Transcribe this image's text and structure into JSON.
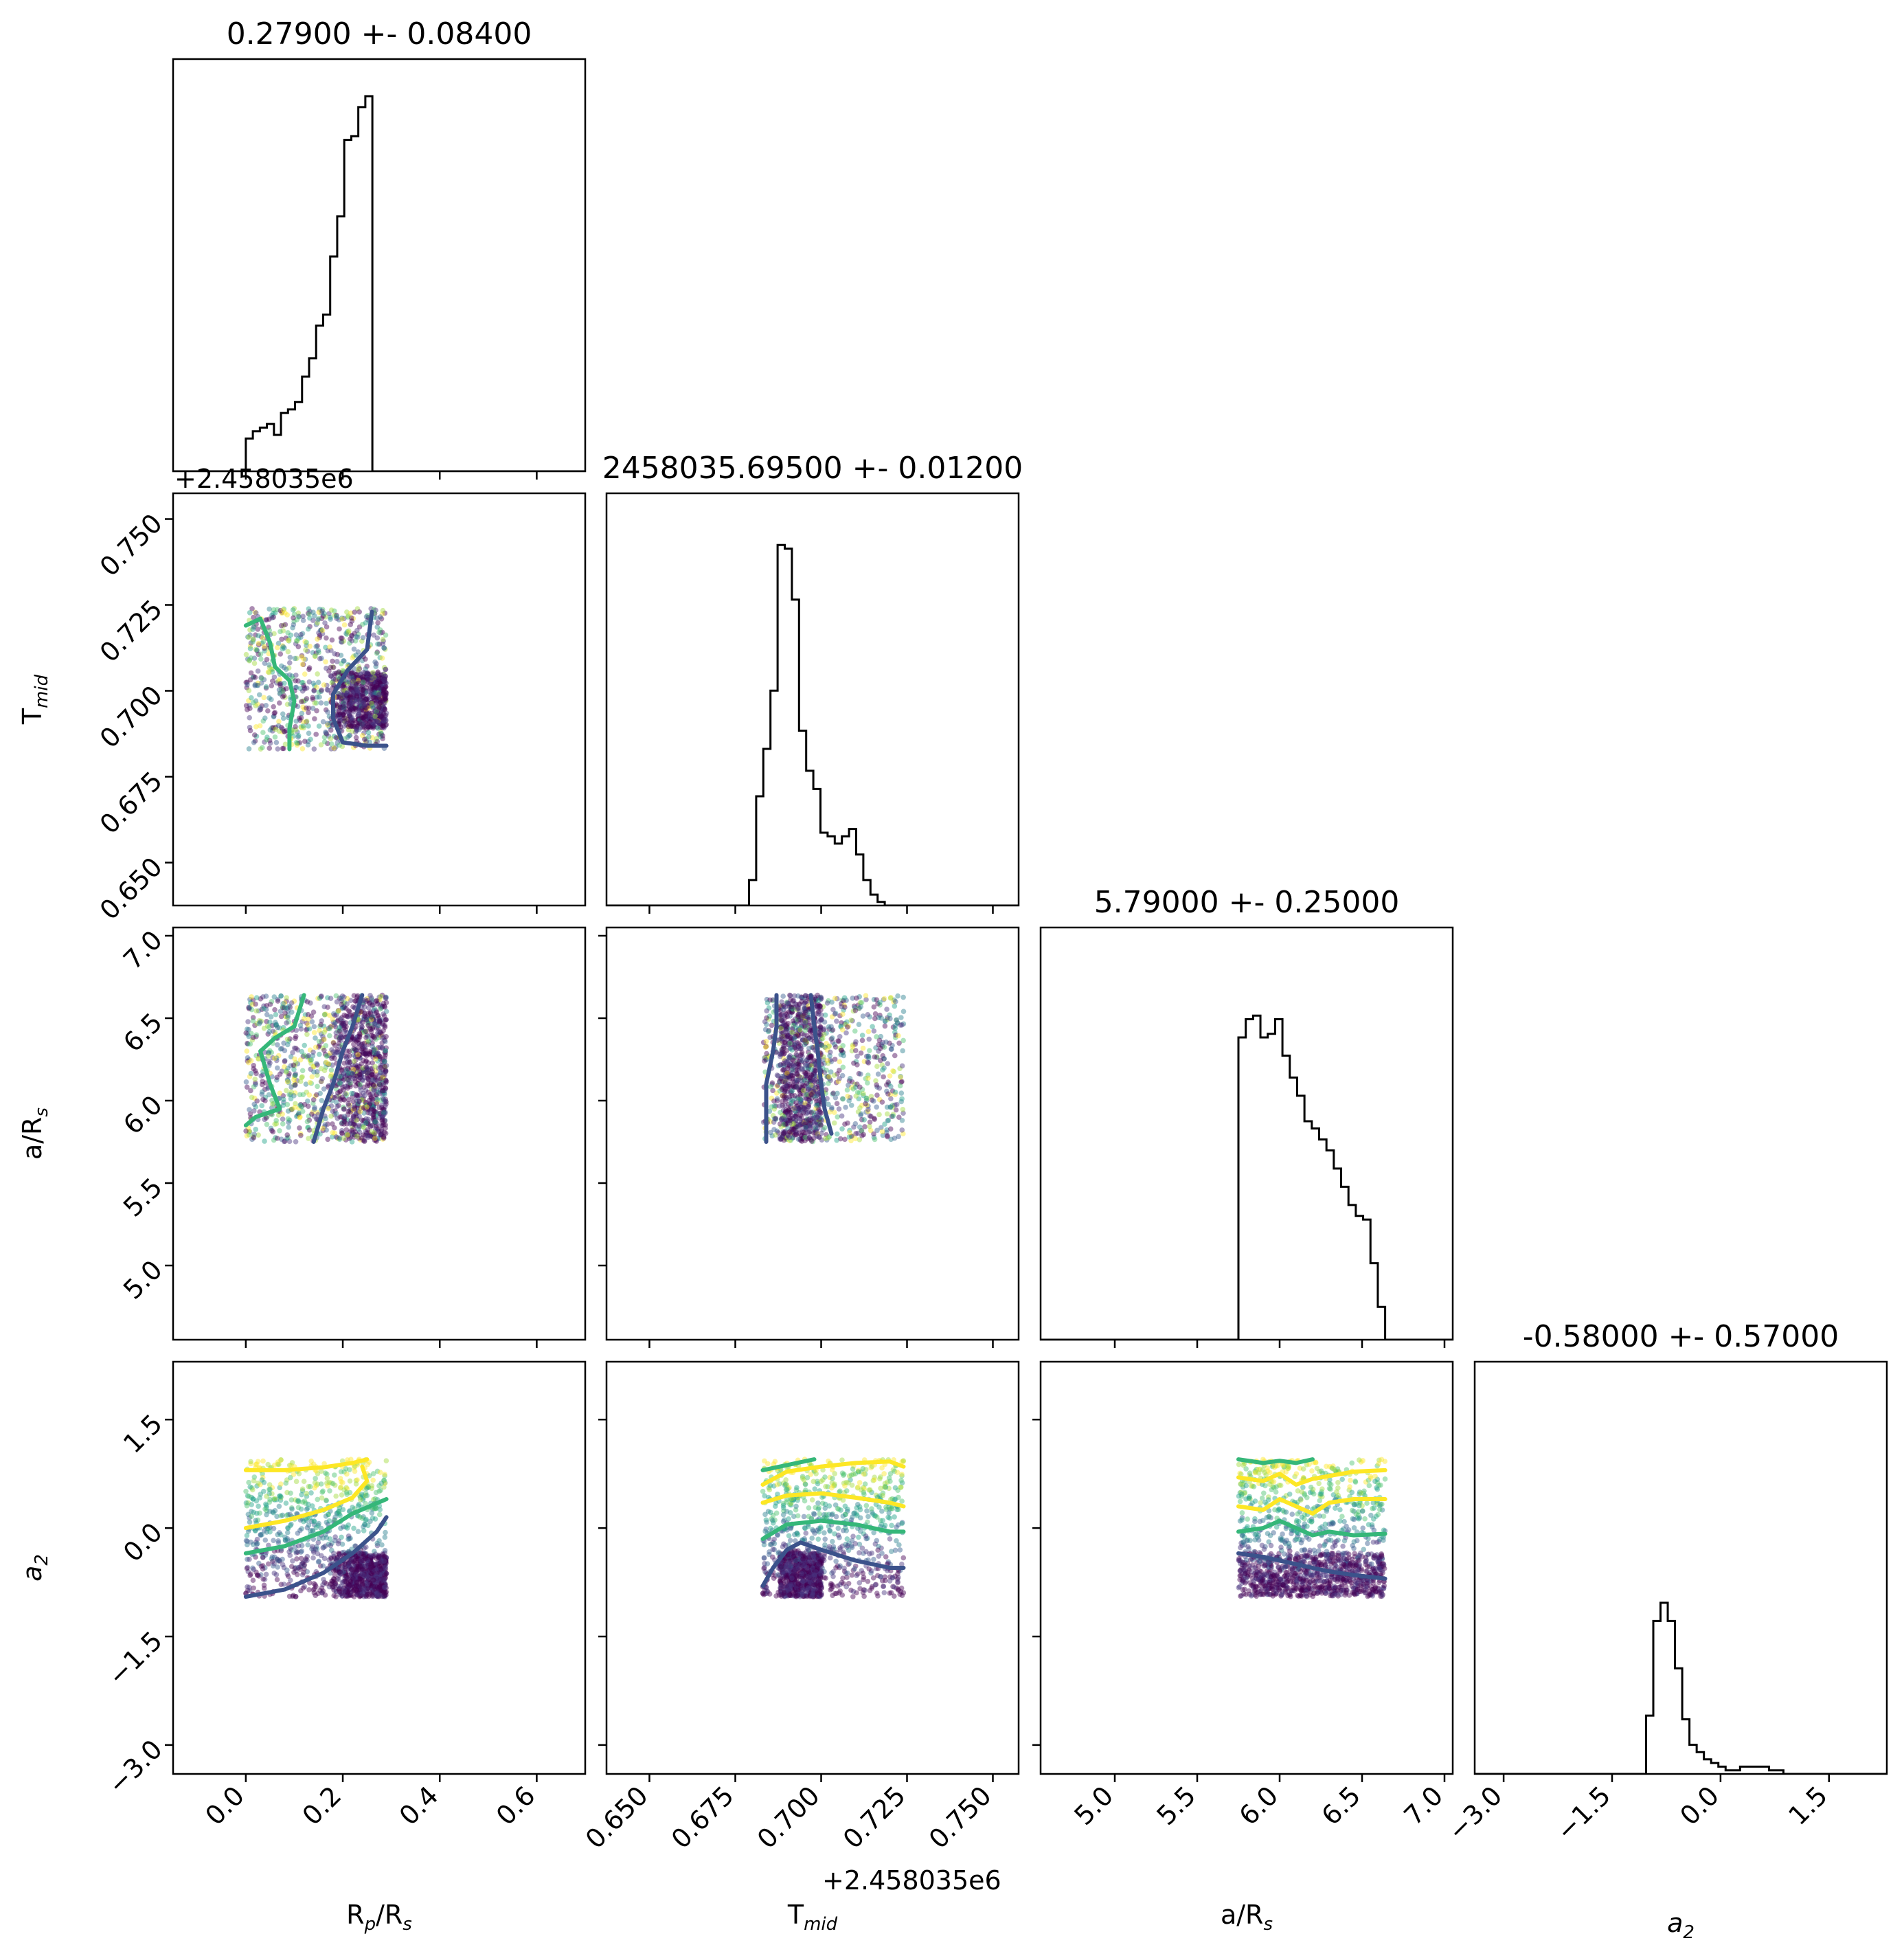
{
  "chart_data": {
    "type": "corner",
    "parameters": [
      {
        "key": "rp",
        "label": "R",
        "sub": "p",
        "label_rest": "/R",
        "sub2": "s",
        "range": [
          -0.15,
          0.7
        ],
        "ticks": [
          0.0,
          0.2,
          0.4,
          0.6
        ],
        "tick_labels": [
          "0.0",
          "0.2",
          "0.4",
          "0.6"
        ],
        "title": "0.27900 +- 0.08400",
        "offset_label": ""
      },
      {
        "key": "tmid",
        "label": "T",
        "sub": "mid",
        "label_rest": "",
        "sub2": "",
        "range": [
          0.6375,
          0.7575
        ],
        "ticks": [
          0.65,
          0.675,
          0.7,
          0.725,
          0.75
        ],
        "tick_labels": [
          "0.650",
          "0.675",
          "0.700",
          "0.725",
          "0.750"
        ],
        "title": "2458035.69500 +- 0.01200",
        "offset_label": "+2.458035e6"
      },
      {
        "key": "ars",
        "label": "a/R",
        "sub": "s",
        "label_rest": "",
        "sub2": "",
        "range": [
          4.55,
          7.05
        ],
        "ticks": [
          5.0,
          5.5,
          6.0,
          6.5,
          7.0
        ],
        "tick_labels": [
          "5.0",
          "5.5",
          "6.0",
          "6.5",
          "7.0"
        ],
        "title": "5.79000 +- 0.25000",
        "offset_label": ""
      },
      {
        "key": "a2",
        "label": "a",
        "sub": "2",
        "label_rest": "",
        "sub2": "",
        "italic": true,
        "range": [
          -3.4,
          2.3
        ],
        "ticks": [
          -3.0,
          -1.5,
          0.0,
          1.5
        ],
        "tick_labels": [
          "−3.0",
          "−1.5",
          "0.0",
          "1.5"
        ],
        "title": "-0.58000 +- 0.57000",
        "offset_label": ""
      }
    ],
    "sample_bounds": {
      "rp": [
        0.0,
        0.29
      ],
      "tmid": [
        0.683,
        0.724
      ],
      "ars": [
        5.75,
        6.64
      ],
      "a2": [
        -0.95,
        0.95
      ]
    },
    "histograms": [
      {
        "param": "rp",
        "start": 0.0,
        "width": 0.0145,
        "heights": [
          0.09,
          0.11,
          0.12,
          0.13,
          0.1,
          0.16,
          0.17,
          0.19,
          0.26,
          0.31,
          0.4,
          0.43,
          0.59,
          0.7,
          0.91,
          0.92,
          1.0,
          1.03,
          0.0,
          0.0
        ]
      },
      {
        "param": "tmid",
        "start": 0.679,
        "width": 0.00208,
        "heights": [
          0.07,
          0.3,
          0.43,
          0.59,
          0.99,
          0.98,
          0.84,
          0.48,
          0.37,
          0.32,
          0.2,
          0.19,
          0.17,
          0.19,
          0.21,
          0.14,
          0.07,
          0.03,
          0.01,
          0.0,
          0.0,
          0.0
        ]
      },
      {
        "param": "ars",
        "start": 5.75,
        "width": 0.0445,
        "heights": [
          0.83,
          0.88,
          0.89,
          0.83,
          0.84,
          0.88,
          0.78,
          0.72,
          0.67,
          0.6,
          0.58,
          0.55,
          0.52,
          0.47,
          0.42,
          0.37,
          0.34,
          0.33,
          0.21,
          0.09
        ]
      },
      {
        "param": "a2",
        "start": -1.03,
        "width": 0.1,
        "heights": [
          0.16,
          0.42,
          0.47,
          0.42,
          0.29,
          0.15,
          0.08,
          0.06,
          0.04,
          0.03,
          0.02,
          0.01,
          0.01,
          0.02,
          0.02,
          0.02,
          0.02,
          0.01,
          0.01,
          0.0
        ]
      }
    ],
    "contours": [
      {
        "x": "rp",
        "y": "tmid",
        "level": "yellow-green",
        "color": "#35b779",
        "points": [
          [
            0.0,
            0.719
          ],
          [
            0.03,
            0.721
          ],
          [
            0.05,
            0.714
          ],
          [
            0.06,
            0.707
          ],
          [
            0.09,
            0.703
          ],
          [
            0.1,
            0.697
          ],
          [
            0.09,
            0.689
          ],
          [
            0.09,
            0.683
          ]
        ]
      },
      {
        "x": "rp",
        "y": "tmid",
        "level": "dark",
        "color": "#3b528b",
        "points": [
          [
            0.26,
            0.723
          ],
          [
            0.25,
            0.712
          ],
          [
            0.21,
            0.706
          ],
          [
            0.18,
            0.699
          ],
          [
            0.18,
            0.692
          ],
          [
            0.2,
            0.685
          ],
          [
            0.25,
            0.684
          ],
          [
            0.29,
            0.684
          ]
        ]
      },
      {
        "x": "rp",
        "y": "ars",
        "level": "green",
        "color": "#35b779",
        "points": [
          [
            0.12,
            6.64
          ],
          [
            0.1,
            6.45
          ],
          [
            0.06,
            6.38
          ],
          [
            0.03,
            6.3
          ],
          [
            0.05,
            6.1
          ],
          [
            0.07,
            5.95
          ],
          [
            0.02,
            5.9
          ],
          [
            0.0,
            5.85
          ]
        ]
      },
      {
        "x": "rp",
        "y": "ars",
        "level": "dark",
        "color": "#3b528b",
        "points": [
          [
            0.24,
            6.64
          ],
          [
            0.22,
            6.45
          ],
          [
            0.2,
            6.3
          ],
          [
            0.18,
            6.1
          ],
          [
            0.16,
            5.95
          ],
          [
            0.14,
            5.75
          ]
        ]
      },
      {
        "x": "tmid",
        "y": "ars",
        "level": "dark",
        "color": "#3b528b",
        "points": [
          [
            0.687,
            6.64
          ],
          [
            0.687,
            6.45
          ],
          [
            0.686,
            6.3
          ],
          [
            0.684,
            6.1
          ],
          [
            0.684,
            5.75
          ]
        ]
      },
      {
        "x": "tmid",
        "y": "ars",
        "level": "dark",
        "color": "#3b528b",
        "points": [
          [
            0.697,
            6.64
          ],
          [
            0.698,
            6.45
          ],
          [
            0.699,
            6.3
          ],
          [
            0.7,
            6.1
          ],
          [
            0.701,
            5.95
          ],
          [
            0.703,
            5.8
          ]
        ]
      },
      {
        "x": "rp",
        "y": "a2",
        "level": "yellow",
        "color": "#fde725",
        "points": [
          [
            0.0,
            0.8
          ],
          [
            0.08,
            0.8
          ],
          [
            0.16,
            0.84
          ],
          [
            0.22,
            0.9
          ],
          [
            0.25,
            0.95
          ]
        ]
      },
      {
        "x": "rp",
        "y": "a2",
        "level": "yellow",
        "color": "#fde725",
        "points": [
          [
            0.0,
            0.0
          ],
          [
            0.08,
            0.1
          ],
          [
            0.16,
            0.25
          ],
          [
            0.22,
            0.42
          ],
          [
            0.25,
            0.65
          ],
          [
            0.24,
            0.85
          ]
        ]
      },
      {
        "x": "rp",
        "y": "a2",
        "level": "green",
        "color": "#35b779",
        "points": [
          [
            0.0,
            -0.35
          ],
          [
            0.08,
            -0.25
          ],
          [
            0.16,
            -0.05
          ],
          [
            0.22,
            0.2
          ],
          [
            0.29,
            0.4
          ]
        ]
      },
      {
        "x": "rp",
        "y": "a2",
        "level": "dark",
        "color": "#3b528b",
        "points": [
          [
            0.0,
            -0.95
          ],
          [
            0.08,
            -0.85
          ],
          [
            0.16,
            -0.62
          ],
          [
            0.22,
            -0.35
          ],
          [
            0.27,
            -0.05
          ],
          [
            0.29,
            0.15
          ]
        ]
      },
      {
        "x": "tmid",
        "y": "a2",
        "level": "green",
        "color": "#35b779",
        "points": [
          [
            0.683,
            0.8
          ],
          [
            0.693,
            0.9
          ],
          [
            0.698,
            0.95
          ]
        ]
      },
      {
        "x": "tmid",
        "y": "a2",
        "level": "yellow",
        "color": "#fde725",
        "points": [
          [
            0.683,
            0.6
          ],
          [
            0.69,
            0.78
          ],
          [
            0.7,
            0.85
          ],
          [
            0.71,
            0.9
          ],
          [
            0.72,
            0.92
          ],
          [
            0.724,
            0.85
          ]
        ]
      },
      {
        "x": "tmid",
        "y": "a2",
        "level": "yellow",
        "color": "#fde725",
        "points": [
          [
            0.683,
            0.35
          ],
          [
            0.69,
            0.45
          ],
          [
            0.7,
            0.48
          ],
          [
            0.71,
            0.42
          ],
          [
            0.72,
            0.35
          ],
          [
            0.724,
            0.3
          ]
        ]
      },
      {
        "x": "tmid",
        "y": "a2",
        "level": "green",
        "color": "#35b779",
        "points": [
          [
            0.683,
            -0.15
          ],
          [
            0.69,
            0.05
          ],
          [
            0.7,
            0.1
          ],
          [
            0.71,
            0.05
          ],
          [
            0.72,
            -0.05
          ],
          [
            0.724,
            -0.05
          ]
        ]
      },
      {
        "x": "tmid",
        "y": "a2",
        "level": "dark",
        "color": "#3b528b",
        "points": [
          [
            0.683,
            -0.8
          ],
          [
            0.686,
            -0.55
          ],
          [
            0.69,
            -0.3
          ],
          [
            0.694,
            -0.2
          ],
          [
            0.7,
            -0.3
          ],
          [
            0.71,
            -0.45
          ],
          [
            0.72,
            -0.55
          ],
          [
            0.724,
            -0.55
          ]
        ]
      },
      {
        "x": "ars",
        "y": "a2",
        "level": "green",
        "color": "#35b779",
        "points": [
          [
            5.75,
            0.95
          ],
          [
            5.9,
            0.9
          ],
          [
            6.0,
            0.93
          ],
          [
            6.1,
            0.9
          ],
          [
            6.2,
            0.95
          ]
        ]
      },
      {
        "x": "ars",
        "y": "a2",
        "level": "yellow",
        "color": "#fde725",
        "points": [
          [
            5.75,
            0.7
          ],
          [
            5.9,
            0.65
          ],
          [
            6.0,
            0.75
          ],
          [
            6.1,
            0.6
          ],
          [
            6.2,
            0.68
          ],
          [
            6.3,
            0.72
          ],
          [
            6.45,
            0.78
          ],
          [
            6.64,
            0.8
          ]
        ]
      },
      {
        "x": "ars",
        "y": "a2",
        "level": "yellow",
        "color": "#fde725",
        "points": [
          [
            5.75,
            0.3
          ],
          [
            5.9,
            0.25
          ],
          [
            6.0,
            0.4
          ],
          [
            6.1,
            0.3
          ],
          [
            6.2,
            0.2
          ],
          [
            6.3,
            0.35
          ],
          [
            6.45,
            0.4
          ],
          [
            6.64,
            0.4
          ]
        ]
      },
      {
        "x": "ars",
        "y": "a2",
        "level": "green",
        "color": "#35b779",
        "points": [
          [
            5.75,
            -0.05
          ],
          [
            5.9,
            0.0
          ],
          [
            6.0,
            0.1
          ],
          [
            6.1,
            0.0
          ],
          [
            6.2,
            -0.1
          ],
          [
            6.3,
            -0.05
          ],
          [
            6.45,
            -0.1
          ],
          [
            6.64,
            -0.08
          ]
        ]
      },
      {
        "x": "ars",
        "y": "a2",
        "level": "dark",
        "color": "#3b528b",
        "points": [
          [
            5.75,
            -0.35
          ],
          [
            5.9,
            -0.4
          ],
          [
            6.0,
            -0.45
          ],
          [
            6.1,
            -0.5
          ],
          [
            6.2,
            -0.55
          ],
          [
            6.3,
            -0.6
          ],
          [
            6.45,
            -0.65
          ],
          [
            6.64,
            -0.7
          ]
        ]
      }
    ],
    "colors": {
      "line": "#000000",
      "dark": "#3b528b",
      "mid_dark": "#21918c",
      "green": "#35b779",
      "yellow": "#fde725",
      "densest": "#440154"
    }
  }
}
